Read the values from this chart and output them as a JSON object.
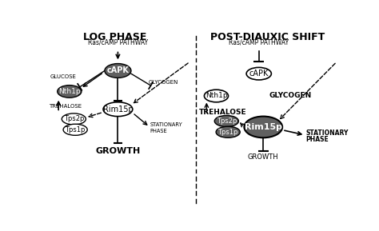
{
  "fig_width": 4.74,
  "fig_height": 2.89,
  "dpi": 100,
  "bg_color": "#ffffff",
  "left_title": "LOG PHASE",
  "right_title": "POST-DIAUXIC SHIFT",
  "dark_fill": "#606060",
  "light_fill": "#ffffff",
  "text_color": "#000000",
  "xlim": [
    0,
    10
  ],
  "ylim": [
    0,
    6.0
  ]
}
